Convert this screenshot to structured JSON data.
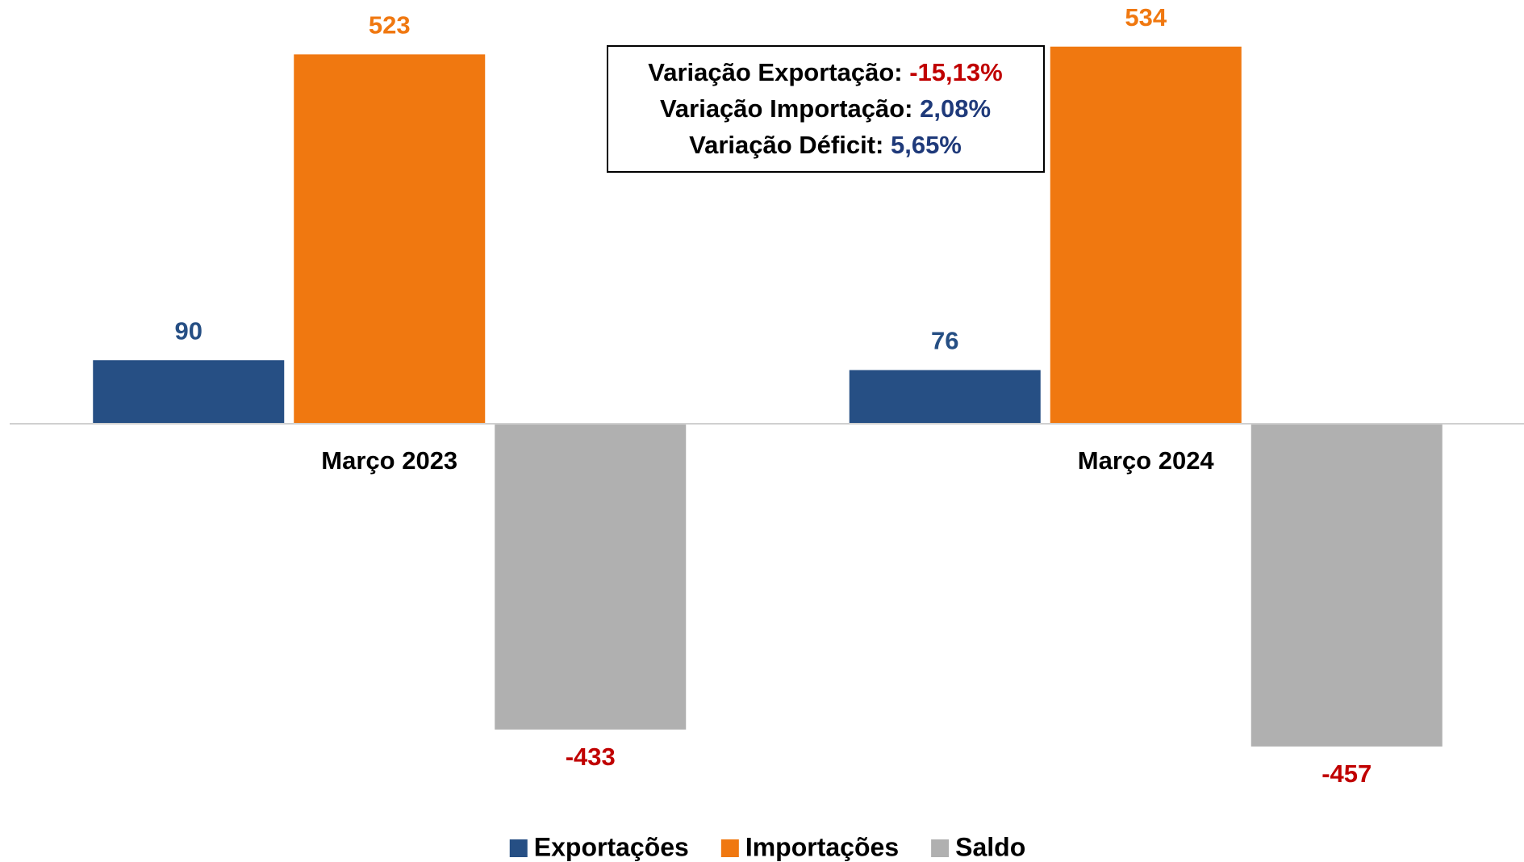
{
  "chart_data": {
    "type": "bar",
    "categories": [
      "Março 2023",
      "Março 2024"
    ],
    "series": [
      {
        "name": "Exportações",
        "color": "#264f84",
        "label_color": "#264f84",
        "values": [
          90,
          76
        ]
      },
      {
        "name": "Importações",
        "color": "#f07810",
        "label_color": "#f07810",
        "values": [
          523,
          534
        ]
      },
      {
        "name": "Saldo",
        "color": "#b0b0b0",
        "label_color": "#c00000",
        "values": [
          -433,
          -457
        ]
      }
    ],
    "ylim": [
      -600,
      600
    ],
    "legend": "bottom",
    "annotations": [
      {
        "label": "Variação Exportação:",
        "value": "-15,13%",
        "color": "#c00000"
      },
      {
        "label": "Variação Importação:",
        "value": "2,08%",
        "color": "#1f3a7a"
      },
      {
        "label": "Variação Déficit:",
        "value": "5,65%",
        "color": "#1f3a7a"
      }
    ]
  }
}
